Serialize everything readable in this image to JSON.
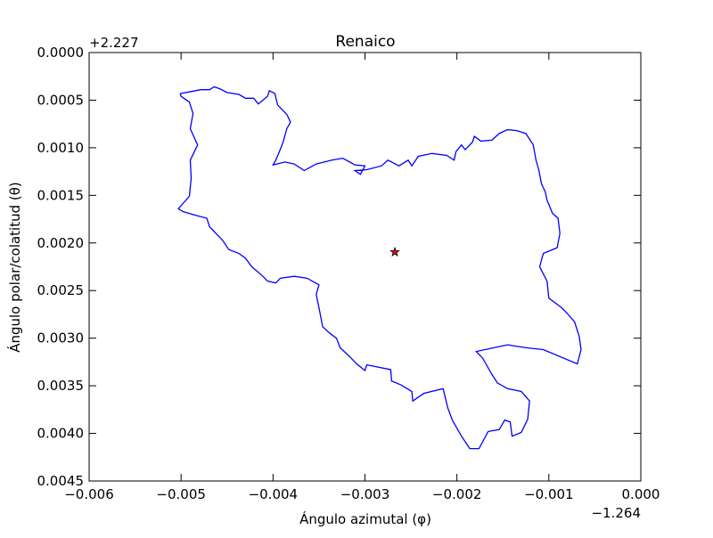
{
  "chart_data": {
    "type": "line",
    "title": "Renaico",
    "xlabel": "Ángulo azimutal (φ)",
    "ylabel": "Ángulo polar/colatitud (θ)",
    "x_offset_label": "−1.264",
    "y_offset_label": "+2.227",
    "xlim": [
      -0.006,
      0.0
    ],
    "ylim": [
      0.0045,
      0.0
    ],
    "xticks": [
      {
        "value": -0.006,
        "label": "−0.006"
      },
      {
        "value": -0.005,
        "label": "−0.005"
      },
      {
        "value": -0.004,
        "label": "−0.004"
      },
      {
        "value": -0.003,
        "label": "−0.003"
      },
      {
        "value": -0.002,
        "label": "−0.002"
      },
      {
        "value": -0.001,
        "label": "−0.001"
      },
      {
        "value": 0.0,
        "label": "0.000"
      }
    ],
    "yticks": [
      {
        "value": 0.0,
        "label": "0.0000"
      },
      {
        "value": 0.0005,
        "label": "0.0005"
      },
      {
        "value": 0.001,
        "label": "0.0010"
      },
      {
        "value": 0.0015,
        "label": "0.0015"
      },
      {
        "value": 0.002,
        "label": "0.0020"
      },
      {
        "value": 0.0025,
        "label": "0.0025"
      },
      {
        "value": 0.003,
        "label": "0.0030"
      },
      {
        "value": 0.0035,
        "label": "0.0035"
      },
      {
        "value": 0.004,
        "label": "0.0040"
      },
      {
        "value": 0.0045,
        "label": "0.0045"
      }
    ],
    "series": [
      {
        "color": "#0000ff",
        "marker": "none",
        "x": [
          -0.00501,
          -0.00489,
          -0.00479,
          -0.00469,
          -0.00464,
          -0.00458,
          -0.0045,
          -0.00437,
          -0.0043,
          -0.00421,
          -0.00416,
          -0.00406,
          -0.00404,
          -0.00398,
          -0.00395,
          -0.00385,
          -0.00381,
          -0.00385,
          -0.00389,
          -0.00393,
          -0.00397,
          -0.004,
          -0.00387,
          -0.00377,
          -0.00366,
          -0.00353,
          -0.00336,
          -0.00324,
          -0.00311,
          -0.003,
          -0.00305,
          -0.00311,
          -0.00298,
          -0.00282,
          -0.00275,
          -0.00263,
          -0.00253,
          -0.00249,
          -0.00242,
          -0.00227,
          -0.00211,
          -0.00203,
          -0.00201,
          -0.00195,
          -0.00191,
          -0.00183,
          -0.00181,
          -0.00174,
          -0.00162,
          -0.00154,
          -0.00145,
          -0.00135,
          -0.00125,
          -0.00117,
          -0.00114,
          -0.00111,
          -0.00108,
          -0.00104,
          -0.00102,
          -0.00096,
          -0.0009,
          -0.00088,
          -0.00091,
          -0.00106,
          -0.0011,
          -0.00102,
          -0.001,
          -0.00086,
          -0.0008,
          -0.00072,
          -0.00067,
          -0.00065,
          -0.00069,
          -0.00106,
          -0.00125,
          -0.00145,
          -0.00179,
          -0.00172,
          -0.00162,
          -0.00156,
          -0.00145,
          -0.0013,
          -0.00121,
          -0.00123,
          -0.0013,
          -0.0014,
          -0.00142,
          -0.00148,
          -0.00154,
          -0.00166,
          -0.00176,
          -0.00186,
          -0.00195,
          -0.00205,
          -0.0021,
          -0.00215,
          -0.00236,
          -0.00248,
          -0.00249,
          -0.00261,
          -0.00271,
          -0.00272,
          -0.00298,
          -0.003,
          -0.00309,
          -0.00317,
          -0.00327,
          -0.00331,
          -0.00338,
          -0.00346,
          -0.0035,
          -0.00353,
          -0.0035,
          -0.00363,
          -0.00377,
          -0.00392,
          -0.00397,
          -0.00406,
          -0.00411,
          -0.00423,
          -0.0043,
          -0.00437,
          -0.00448,
          -0.00455,
          -0.00461,
          -0.00469,
          -0.00472,
          -0.00484,
          -0.00498,
          -0.00503,
          -0.00491,
          -0.00489,
          -0.0049,
          -0.00482,
          -0.0049,
          -0.00487,
          -0.00491,
          -0.005,
          -0.00501
        ],
        "values": [
          0.00043,
          0.00041,
          0.00039,
          0.00039,
          0.00036,
          0.00038,
          0.00042,
          0.00044,
          0.00048,
          0.00048,
          0.00054,
          0.00046,
          0.0004,
          0.00043,
          0.00055,
          0.00065,
          0.00073,
          0.0008,
          0.00094,
          0.00104,
          0.00113,
          0.00118,
          0.00115,
          0.00117,
          0.00124,
          0.00117,
          0.00113,
          0.00111,
          0.00118,
          0.00119,
          0.00128,
          0.00124,
          0.00123,
          0.00119,
          0.00113,
          0.00119,
          0.00113,
          0.00119,
          0.00109,
          0.00106,
          0.00108,
          0.00113,
          0.00104,
          0.00097,
          0.00102,
          0.00094,
          0.00088,
          0.00093,
          0.00092,
          0.00085,
          0.00081,
          0.00082,
          0.00085,
          0.00097,
          0.00113,
          0.00123,
          0.00138,
          0.00146,
          0.00155,
          0.00169,
          0.00174,
          0.0019,
          0.00205,
          0.00211,
          0.00225,
          0.0024,
          0.00258,
          0.00268,
          0.00274,
          0.00283,
          0.00298,
          0.00312,
          0.00327,
          0.00312,
          0.0031,
          0.00307,
          0.00314,
          0.00321,
          0.00338,
          0.00347,
          0.00353,
          0.00356,
          0.00366,
          0.00385,
          0.00399,
          0.00403,
          0.00388,
          0.00386,
          0.00396,
          0.00398,
          0.00416,
          0.00416,
          0.00403,
          0.00386,
          0.00373,
          0.00353,
          0.00358,
          0.00366,
          0.00356,
          0.00349,
          0.00345,
          0.00333,
          0.00328,
          0.00334,
          0.00327,
          0.00319,
          0.0031,
          0.003,
          0.00295,
          0.00288,
          0.00268,
          0.00254,
          0.00244,
          0.00237,
          0.00235,
          0.00237,
          0.00242,
          0.0024,
          0.00235,
          0.00225,
          0.00216,
          0.00211,
          0.00207,
          0.00197,
          0.00191,
          0.00183,
          0.00174,
          0.00171,
          0.00167,
          0.00164,
          0.00151,
          0.00132,
          0.00113,
          0.00097,
          0.0008,
          0.00064,
          0.00052,
          0.00046,
          0.00043
        ]
      },
      {
        "color": "#ff0000",
        "marker": "star",
        "x": [
          -0.002675
        ],
        "values": [
          0.002096
        ]
      }
    ]
  }
}
